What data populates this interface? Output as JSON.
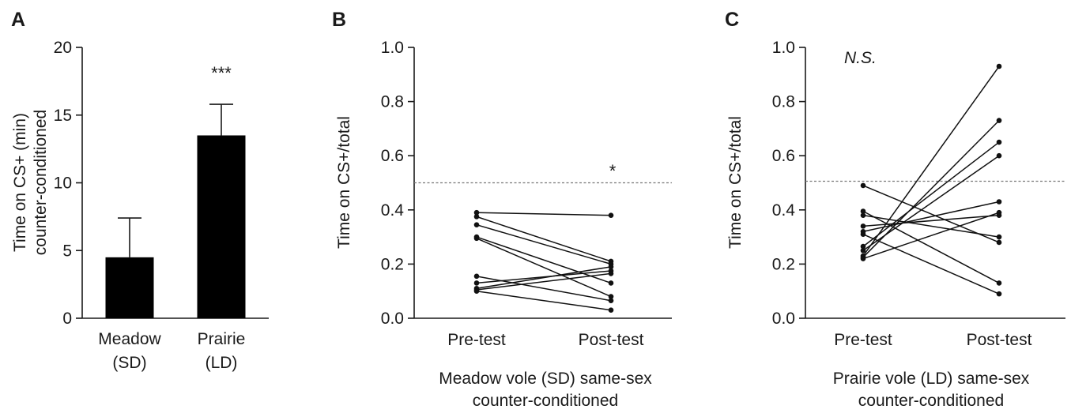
{
  "chart_data": [
    {
      "panel": "A",
      "type": "bar",
      "categories": [
        "Meadow\n(SD)",
        "Prairie\n(LD)"
      ],
      "values": [
        4.5,
        13.5
      ],
      "error": [
        2.9,
        2.3
      ],
      "ylabel": [
        "Time on CS+ (min)",
        "counter-conditioned"
      ],
      "xlabel": "",
      "ylim": [
        0,
        20
      ],
      "yticks": [
        0,
        5,
        10,
        15,
        20
      ],
      "annotations": [
        "",
        "***"
      ],
      "color": "#000000"
    },
    {
      "panel": "B",
      "type": "line",
      "x": [
        "Pre-test",
        "Post-test"
      ],
      "series": [
        {
          "values": [
            0.39,
            0.38
          ]
        },
        {
          "values": [
            0.375,
            0.21
          ]
        },
        {
          "values": [
            0.345,
            0.2
          ]
        },
        {
          "values": [
            0.3,
            0.13
          ]
        },
        {
          "values": [
            0.295,
            0.08
          ]
        },
        {
          "values": [
            0.155,
            0.065
          ]
        },
        {
          "values": [
            0.13,
            0.175
          ]
        },
        {
          "values": [
            0.11,
            0.19
          ]
        },
        {
          "values": [
            0.105,
            0.165
          ]
        },
        {
          "values": [
            0.1,
            0.03
          ]
        }
      ],
      "ylabel": "Time on CS+/total",
      "xlabel": [
        "Meadow vole (SD) same-sex",
        "counter-conditioned"
      ],
      "ylim": [
        0,
        1.0
      ],
      "yticks": [
        "0.0",
        "0.2",
        "0.4",
        "0.6",
        "0.8",
        "1.0"
      ],
      "reference_line": 0.5,
      "annotation": "*"
    },
    {
      "panel": "C",
      "type": "line",
      "x": [
        "Pre-test",
        "Post-test"
      ],
      "series": [
        {
          "values": [
            0.49,
            0.28
          ]
        },
        {
          "values": [
            0.395,
            0.13
          ]
        },
        {
          "values": [
            0.38,
            0.3
          ]
        },
        {
          "values": [
            0.34,
            0.38
          ]
        },
        {
          "values": [
            0.32,
            0.43
          ]
        },
        {
          "values": [
            0.31,
            0.09
          ]
        },
        {
          "values": [
            0.265,
            0.65
          ]
        },
        {
          "values": [
            0.25,
            0.6
          ]
        },
        {
          "values": [
            0.23,
            0.93
          ]
        },
        {
          "values": [
            0.225,
            0.73
          ]
        },
        {
          "values": [
            0.22,
            0.39
          ]
        }
      ],
      "ylabel": "Time on CS+/total",
      "xlabel": [
        "Prairie vole (LD) same-sex",
        "counter-conditioned"
      ],
      "ylim": [
        0,
        1.0
      ],
      "yticks": [
        "0.0",
        "0.2",
        "0.4",
        "0.6",
        "0.8",
        "1.0"
      ],
      "reference_line": 0.5,
      "annotation": "N.S."
    }
  ]
}
